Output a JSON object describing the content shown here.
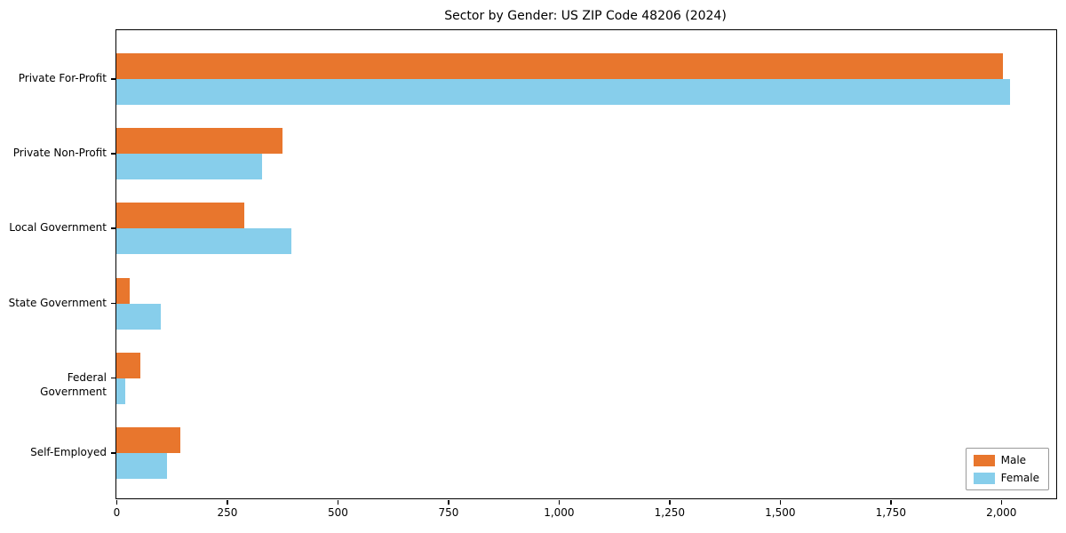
{
  "chart_data": {
    "type": "bar",
    "orientation": "horizontal",
    "title": "Sector by Gender: US ZIP Code 48206 (2024)",
    "categories": [
      "Private For-Profit",
      "Private Non-Profit",
      "Local Government",
      "State Government",
      "Federal Government",
      "Self-Employed"
    ],
    "series": [
      {
        "name": "Male",
        "color": "#e8762d",
        "values": [
          2005,
          375,
          290,
          30,
          55,
          145
        ]
      },
      {
        "name": "Female",
        "color": "#87ceeb",
        "values": [
          2020,
          330,
          395,
          100,
          20,
          115
        ]
      }
    ],
    "xlim": [
      0,
      2125
    ],
    "x_ticks": [
      0,
      250,
      500,
      750,
      1000,
      1250,
      1500,
      1750,
      2000
    ],
    "xlabel": "",
    "ylabel": "",
    "grid": false,
    "legend_position": "lower right"
  }
}
